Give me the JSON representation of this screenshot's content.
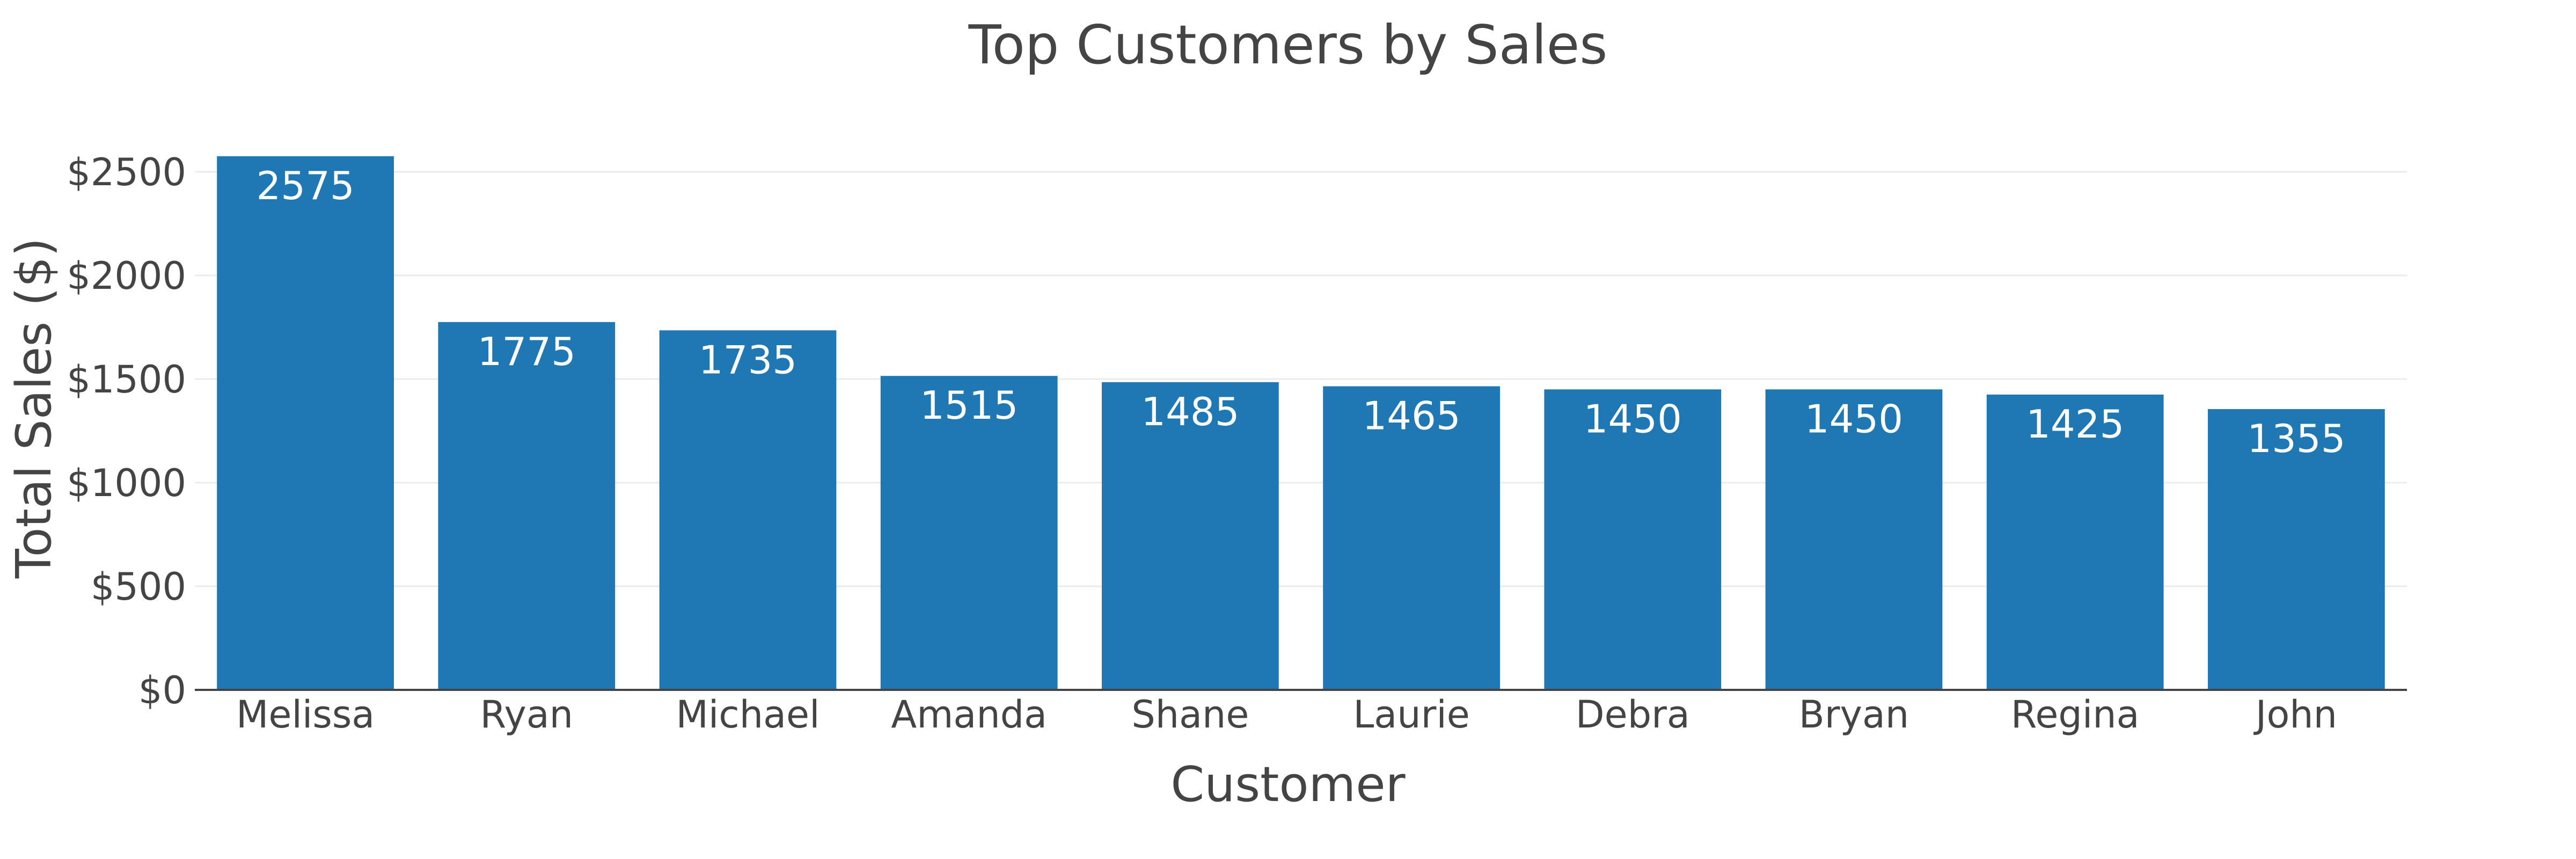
{
  "chart_data": {
    "type": "bar",
    "title": "Top Customers by Sales",
    "xlabel": "Customer",
    "ylabel": "Total Sales ($)",
    "categories": [
      "Melissa",
      "Ryan",
      "Michael",
      "Amanda",
      "Shane",
      "Laurie",
      "Debra",
      "Bryan",
      "Regina",
      "John"
    ],
    "values": [
      2575,
      1775,
      1735,
      1515,
      1485,
      1465,
      1450,
      1450,
      1425,
      1355
    ],
    "ylim": [
      0,
      2700
    ],
    "yticks": [
      0,
      500,
      1000,
      1500,
      2000,
      2500
    ],
    "ytick_labels": [
      "$0",
      "$500",
      "$1000",
      "$1500",
      "$2000",
      "$2500"
    ],
    "grid": true,
    "bar_color": "#1f77b4",
    "text_color": "#444444"
  }
}
